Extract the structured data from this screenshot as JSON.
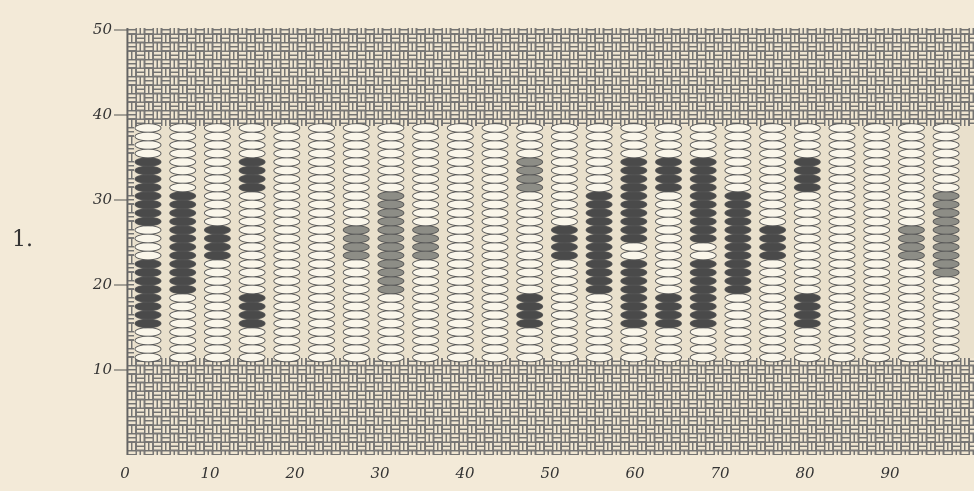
{
  "figure_label": "1.",
  "x_axis": {
    "ticks": [
      "0",
      "10",
      "20",
      "30",
      "40",
      "50",
      "60",
      "70",
      "80",
      "90"
    ]
  },
  "y_axis": {
    "ticks": [
      "10",
      "20",
      "30",
      "40",
      "50"
    ]
  }
}
